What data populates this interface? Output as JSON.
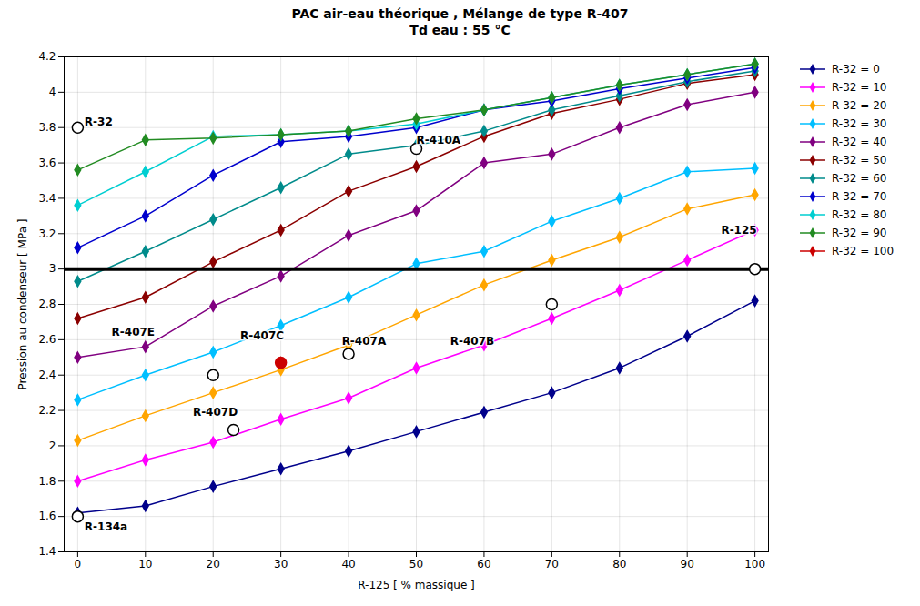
{
  "chart_data": {
    "type": "line",
    "title": "PAC air-eau théorique , Mélange de type R-407",
    "subtitle": "Td eau : 55 °C",
    "xlabel": "R-125 [ % massique ]",
    "ylabel": "Pression au condenseur [ MPa ]",
    "xlim": [
      -2,
      102
    ],
    "ylim": [
      1.4,
      4.2
    ],
    "xticks": [
      0,
      10,
      20,
      30,
      40,
      50,
      60,
      70,
      80,
      90,
      100
    ],
    "yticks": [
      1.4,
      1.6,
      1.8,
      2.0,
      2.2,
      2.4,
      2.6,
      2.8,
      3.0,
      3.2,
      3.4,
      3.6,
      3.8,
      4.0,
      4.2
    ],
    "grid": true,
    "legend": "right",
    "series": [
      {
        "name": "R-32 = 0",
        "color": "#00008B",
        "marker": "diamond",
        "x": [
          0,
          10,
          20,
          30,
          40,
          50,
          60,
          70,
          80,
          90,
          100
        ],
        "values": [
          1.62,
          1.66,
          1.77,
          1.87,
          1.97,
          2.08,
          2.19,
          2.3,
          2.44,
          2.62,
          2.82
        ]
      },
      {
        "name": "R-32 = 10",
        "color": "#FF00FF",
        "marker": "diamond",
        "x": [
          0,
          10,
          20,
          30,
          40,
          50,
          60,
          70,
          80,
          90,
          100
        ],
        "values": [
          1.8,
          1.92,
          2.02,
          2.15,
          2.27,
          2.44,
          2.57,
          2.72,
          2.88,
          3.05,
          3.22
        ]
      },
      {
        "name": "R-32 = 20",
        "color": "#FFA500",
        "marker": "diamond",
        "x": [
          0,
          10,
          20,
          30,
          40,
          50,
          60,
          70,
          80,
          90,
          100
        ],
        "values": [
          2.03,
          2.17,
          2.3,
          2.43,
          2.57,
          2.74,
          2.91,
          3.05,
          3.18,
          3.34,
          3.42
        ]
      },
      {
        "name": "R-32 = 30",
        "color": "#00BFFF",
        "marker": "diamond",
        "x": [
          0,
          10,
          20,
          30,
          40,
          50,
          60,
          70,
          80,
          90,
          100
        ],
        "values": [
          2.26,
          2.4,
          2.53,
          2.68,
          2.84,
          3.03,
          3.1,
          3.27,
          3.4,
          3.55,
          3.57
        ]
      },
      {
        "name": "R-32 = 40",
        "color": "#800080",
        "marker": "diamond",
        "x": [
          0,
          10,
          20,
          30,
          40,
          50,
          60,
          70,
          80,
          90,
          100
        ],
        "values": [
          2.5,
          2.56,
          2.79,
          2.96,
          3.19,
          3.33,
          3.6,
          3.65,
          3.8,
          3.93,
          4.0
        ]
      },
      {
        "name": "R-32 = 50",
        "color": "#8B0000",
        "marker": "diamond",
        "x": [
          0,
          10,
          20,
          30,
          40,
          50,
          60,
          70,
          80,
          90,
          100
        ],
        "values": [
          2.72,
          2.84,
          3.04,
          3.22,
          3.44,
          3.58,
          3.75,
          3.88,
          3.96,
          4.05,
          4.1
        ]
      },
      {
        "name": "R-32 = 60",
        "color": "#008B8B",
        "marker": "diamond",
        "x": [
          0,
          10,
          20,
          30,
          40,
          50,
          60,
          70,
          80,
          90,
          100
        ],
        "values": [
          2.93,
          3.1,
          3.28,
          3.46,
          3.65,
          3.7,
          3.78,
          3.9,
          3.98,
          4.06,
          4.12
        ]
      },
      {
        "name": "R-32 = 70",
        "color": "#0000CD",
        "marker": "diamond",
        "x": [
          0,
          10,
          20,
          30,
          40,
          50,
          60,
          70,
          80,
          90,
          100
        ],
        "values": [
          3.12,
          3.3,
          3.53,
          3.72,
          3.75,
          3.8,
          3.9,
          3.95,
          4.02,
          4.08,
          4.14
        ]
      },
      {
        "name": "R-32 = 80",
        "color": "#00CED1",
        "marker": "diamond",
        "x": [
          0,
          10,
          20,
          30,
          40,
          50,
          60,
          70,
          80,
          90,
          100
        ],
        "values": [
          3.36,
          3.55,
          3.75,
          3.76,
          3.78,
          3.82,
          3.9,
          3.97,
          4.04,
          4.1,
          4.16
        ]
      },
      {
        "name": "R-32 = 90",
        "color": "#228B22",
        "marker": "diamond",
        "x": [
          0,
          10,
          20,
          30,
          40,
          50,
          60,
          70,
          80,
          90,
          100
        ],
        "values": [
          3.56,
          3.73,
          3.74,
          3.76,
          3.78,
          3.85,
          3.9,
          3.97,
          4.04,
          4.1,
          4.16
        ]
      },
      {
        "name": "R-32 = 100",
        "color": "#CC0000",
        "marker": "diamond",
        "x": [
          30
        ],
        "values": [
          2.47
        ]
      }
    ],
    "reference_line_y": 3.0,
    "annotations": [
      {
        "text": "R-32",
        "x": 1,
        "y": 3.83
      },
      {
        "text": "R-134a",
        "x": 1,
        "y": 1.54
      },
      {
        "text": "R-410A",
        "x": 50,
        "y": 3.73
      },
      {
        "text": "R-125",
        "x": 95,
        "y": 3.22
      },
      {
        "text": "R-407E",
        "x": 5,
        "y": 2.64
      },
      {
        "text": "R-407C",
        "x": 24,
        "y": 2.62
      },
      {
        "text": "R-407A",
        "x": 39,
        "y": 2.59
      },
      {
        "text": "R-407B",
        "x": 55,
        "y": 2.59
      },
      {
        "text": "R-407D",
        "x": 17,
        "y": 2.19
      }
    ],
    "open_circles": [
      {
        "x": 0,
        "y": 3.8
      },
      {
        "x": 0,
        "y": 1.6
      },
      {
        "x": 50,
        "y": 3.68
      },
      {
        "x": 100,
        "y": 3.0
      },
      {
        "x": 20,
        "y": 2.4
      },
      {
        "x": 23,
        "y": 2.09
      },
      {
        "x": 40,
        "y": 2.52
      },
      {
        "x": 70,
        "y": 2.8
      }
    ],
    "filled_circle": {
      "x": 30,
      "y": 2.47,
      "color": "#CC0000"
    }
  }
}
